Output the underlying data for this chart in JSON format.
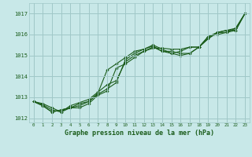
{
  "title": "Graphe pression niveau de la mer (hPa)",
  "bg_color": "#c8e8e8",
  "grid_color": "#a0c8c8",
  "line_color": "#1a5c1a",
  "marker_color": "#1a5c1a",
  "xlim": [
    -0.5,
    23.5
  ],
  "ylim": [
    1011.8,
    1017.5
  ],
  "yticks": [
    1012,
    1013,
    1014,
    1015,
    1016,
    1017
  ],
  "xticks": [
    0,
    1,
    2,
    3,
    4,
    5,
    6,
    7,
    8,
    9,
    10,
    11,
    12,
    13,
    14,
    15,
    16,
    17,
    18,
    19,
    20,
    21,
    22,
    23
  ],
  "series": [
    [
      1012.8,
      1012.7,
      1012.5,
      1012.3,
      1012.5,
      1012.7,
      1012.8,
      1013.2,
      1014.3,
      1014.6,
      1014.9,
      1015.2,
      1015.3,
      1015.45,
      1015.2,
      1015.2,
      1015.1,
      1015.1,
      1015.4,
      1015.8,
      1016.1,
      1016.2,
      1016.2,
      1017.0
    ],
    [
      1012.8,
      1012.65,
      1012.4,
      1012.3,
      1012.6,
      1012.75,
      1012.9,
      1013.25,
      1013.6,
      1013.8,
      1014.7,
      1015.0,
      1015.2,
      1015.35,
      1015.35,
      1015.3,
      1015.3,
      1015.4,
      1015.4,
      1015.9,
      1016.1,
      1016.2,
      1016.3,
      1017.0
    ],
    [
      1012.8,
      1012.6,
      1012.3,
      1012.4,
      1012.5,
      1012.6,
      1012.8,
      1013.15,
      1013.4,
      1013.7,
      1014.8,
      1015.1,
      1015.3,
      1015.5,
      1015.3,
      1015.1,
      1015.2,
      1015.4,
      1015.4,
      1015.8,
      1016.1,
      1016.1,
      1016.3,
      1017.0
    ],
    [
      1012.8,
      1012.6,
      1012.3,
      1012.4,
      1012.5,
      1012.5,
      1012.7,
      1013.1,
      1013.3,
      1014.4,
      1014.6,
      1014.9,
      1015.2,
      1015.4,
      1015.2,
      1015.1,
      1015.0,
      1015.1,
      1015.4,
      1015.9,
      1016.0,
      1016.1,
      1016.2,
      1017.0
    ]
  ]
}
